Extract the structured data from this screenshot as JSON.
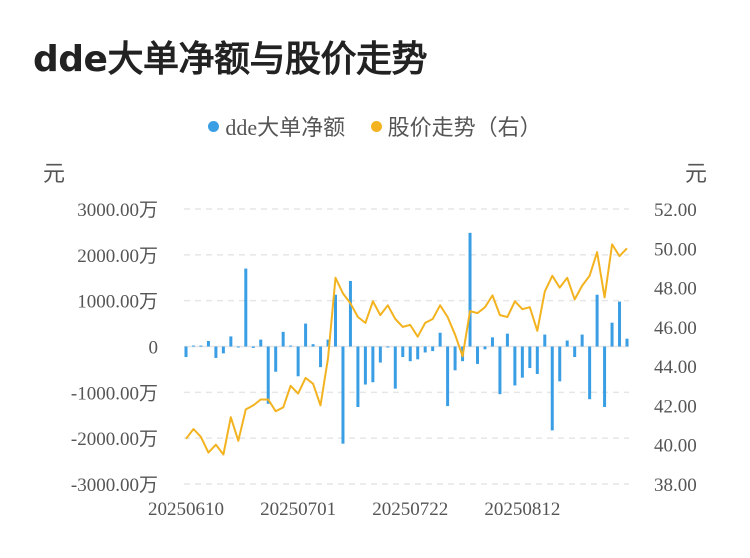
{
  "title": "dde大单净额与股价走势",
  "legend": {
    "dde_label": "dde大单净额",
    "price_label": "股价走势（右）"
  },
  "units": {
    "left": "元",
    "right": "元"
  },
  "colors": {
    "bar": "#3a9ee4",
    "line": "#f3b320",
    "grid": "#e6e6e6"
  },
  "chart_data": {
    "type": "bar+line",
    "x_tick_labels": [
      "20250610",
      "20250701",
      "20250722",
      "20250812"
    ],
    "x_tick_index": [
      0,
      15,
      30,
      45
    ],
    "y_left": {
      "min": -3000,
      "max": 3000,
      "ticks": [
        3000,
        2000,
        1000,
        0,
        -1000,
        -2000,
        -3000
      ],
      "tick_labels": [
        "3000.00万",
        "2000.00万",
        "1000.00万",
        "0",
        "-1000.00万",
        "-2000.00万",
        "-3000.00万"
      ]
    },
    "y_right": {
      "min": 38,
      "max": 52,
      "ticks": [
        52,
        50,
        48,
        46,
        44,
        42,
        40,
        38
      ],
      "tick_labels": [
        "52.00",
        "50.00",
        "48.00",
        "46.00",
        "44.00",
        "42.00",
        "40.00",
        "38.00"
      ]
    },
    "grid": true,
    "legend_position": "top-center",
    "series": [
      {
        "name": "dde大单净额",
        "type": "bar",
        "values": [
          -230,
          20,
          20,
          120,
          -250,
          -150,
          220,
          0,
          1700,
          -30,
          150,
          -1250,
          -550,
          320,
          20,
          -650,
          500,
          50,
          -450,
          150,
          1130,
          -2120,
          1430,
          -1320,
          -830,
          -780,
          -350,
          0,
          -920,
          -230,
          -320,
          -280,
          -130,
          -100,
          300,
          -1300,
          -520,
          -320,
          2480,
          -380,
          -60,
          200,
          -1040,
          280,
          -850,
          -680,
          -470,
          -600,
          260,
          -1830,
          -760,
          130,
          -230,
          260,
          -1150,
          1130,
          -1320,
          520,
          980,
          170
        ]
      },
      {
        "name": "股价走势（右）",
        "type": "line",
        "values": [
          40.3,
          40.8,
          40.4,
          39.6,
          40.0,
          39.5,
          41.4,
          40.2,
          41.8,
          42.0,
          42.3,
          42.3,
          41.7,
          41.9,
          43.0,
          42.6,
          43.4,
          43.1,
          42.0,
          44.4,
          48.5,
          47.7,
          47.2,
          46.5,
          46.2,
          47.3,
          46.6,
          47.1,
          46.4,
          46.0,
          46.1,
          45.5,
          46.2,
          46.4,
          47.1,
          46.5,
          45.6,
          44.5,
          46.8,
          46.7,
          47.0,
          47.6,
          46.6,
          46.5,
          47.3,
          46.9,
          47.0,
          45.8,
          47.8,
          48.6,
          48.0,
          48.5,
          47.4,
          48.1,
          48.6,
          49.8,
          47.5,
          50.2,
          49.6,
          50.0
        ]
      }
    ]
  }
}
